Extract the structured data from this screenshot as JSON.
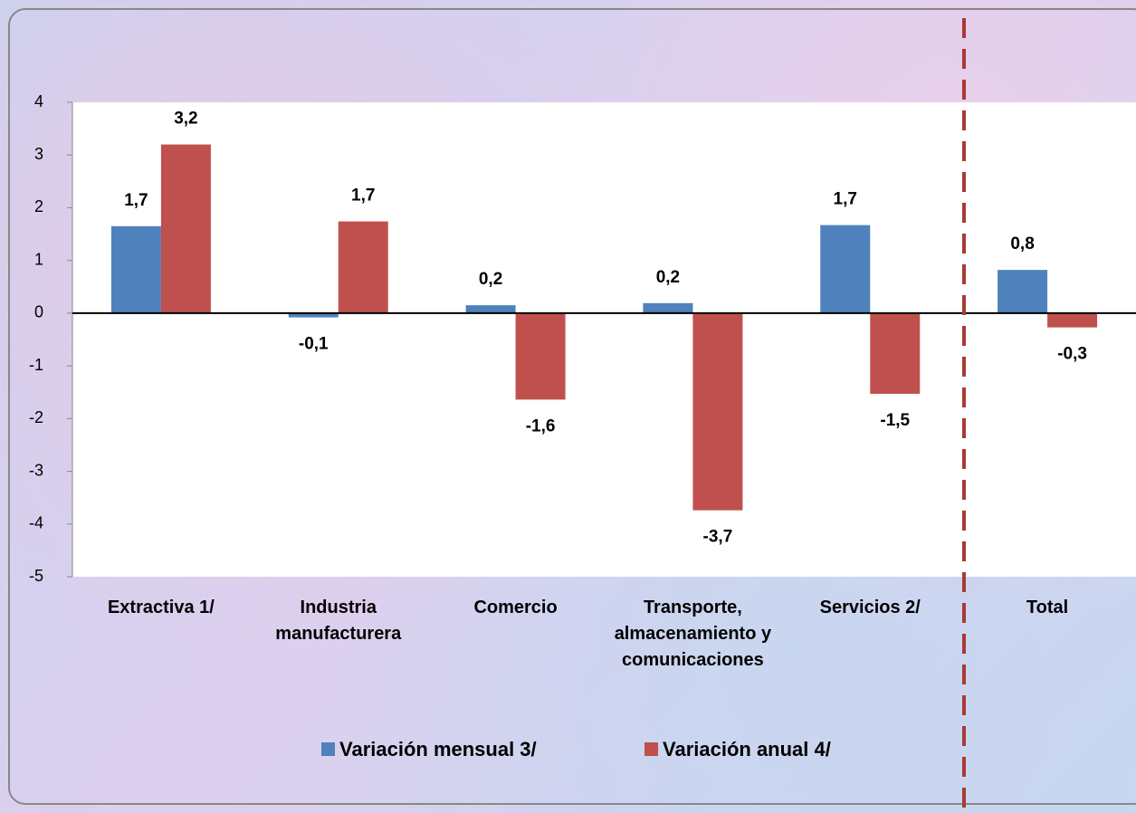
{
  "chart_data": {
    "type": "bar",
    "categories": [
      "Extractiva  1/",
      "Industria\nmanufacturera",
      "Comercio",
      "Transporte,\nalmacenamiento y\ncomunicaciones",
      "Servicios  2/",
      "Total"
    ],
    "series": [
      {
        "name": "Variación mensual 3/",
        "color": "#4f81bd",
        "values": [
          1.65,
          -0.08,
          0.15,
          0.19,
          1.67,
          0.82
        ],
        "value_labels": [
          "1,7",
          "-0,1",
          "0,2",
          "0,2",
          "1,7",
          "0,8"
        ]
      },
      {
        "name": "Variación anual 4/",
        "color": "#c0504d",
        "values": [
          3.2,
          1.74,
          -1.64,
          -3.74,
          -1.53,
          -0.27
        ],
        "value_labels": [
          "3,2",
          "1,7",
          "-1,6",
          "-3,7",
          "-1,5",
          "-0,3"
        ]
      }
    ],
    "ylim": [
      -5,
      4
    ],
    "yticks": [
      -5,
      -4,
      -3,
      -2,
      -1,
      0,
      1,
      2,
      3,
      4
    ],
    "grid": false,
    "legend": "bottom"
  }
}
